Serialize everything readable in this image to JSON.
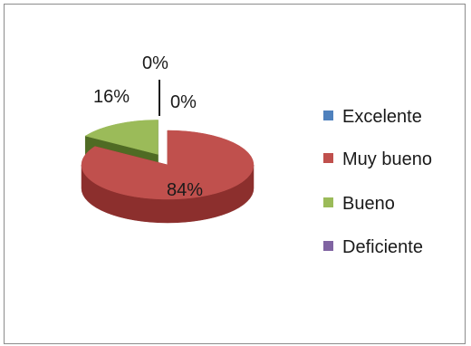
{
  "chart_data": {
    "type": "pie",
    "style": "3d-exploded",
    "categories": [
      "Excelente",
      "Muy bueno",
      "Bueno",
      "Deficiente"
    ],
    "values": [
      0,
      84,
      16,
      0
    ],
    "data_labels": [
      "0%",
      "84%",
      "16%",
      "0%"
    ],
    "colors": [
      "#4f81bd",
      "#c0504d",
      "#9bbb59",
      "#8064a2"
    ],
    "side_colors": [
      "#2c4d75",
      "#8c2f2d",
      "#4f6b24",
      "#4b3a63"
    ],
    "legend_position": "right"
  }
}
